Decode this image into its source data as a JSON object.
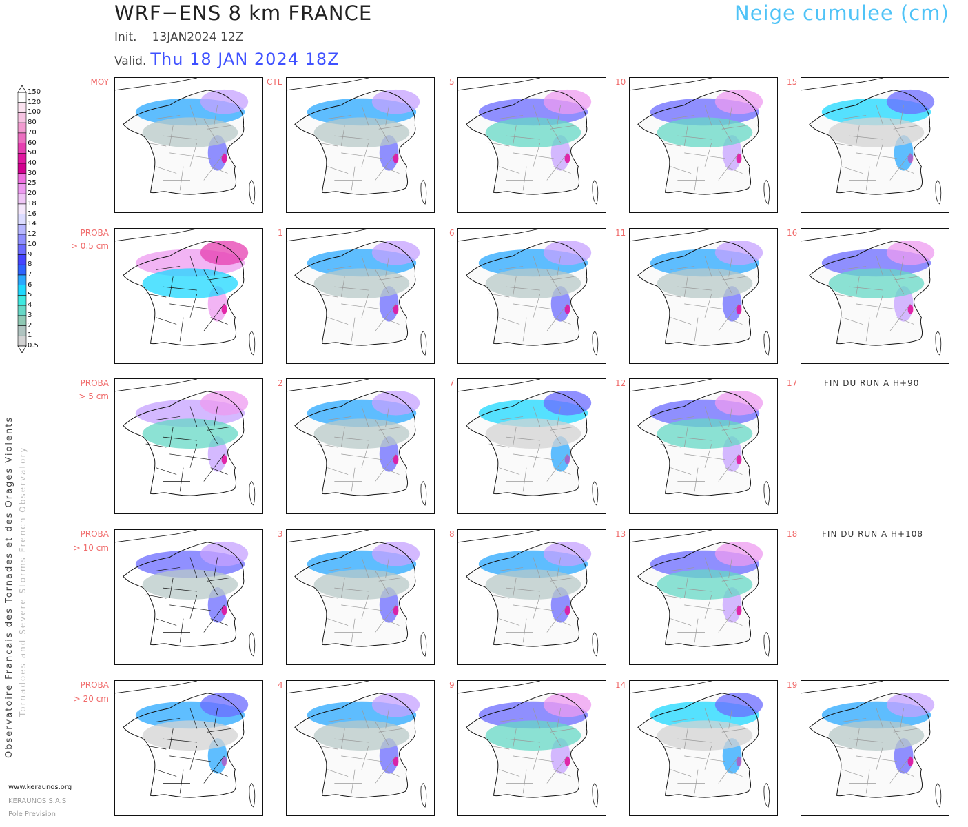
{
  "header": {
    "title": "WRF−ENS 8 km FRANCE",
    "subtitle": "Neige cumulee (cm)",
    "init_label": "Init.",
    "init_value": "13JAN2024 12Z",
    "valid_label": "Valid.",
    "valid_value": "Thu 18 JAN 2024 18Z"
  },
  "legend": {
    "labels": [
      "150",
      "120",
      "100",
      "80",
      "70",
      "60",
      "50",
      "40",
      "30",
      "25",
      "20",
      "18",
      "16",
      "14",
      "12",
      "10",
      "9",
      "8",
      "7",
      "6",
      "5",
      "4",
      "3",
      "2",
      "1",
      "0.5"
    ],
    "colors": [
      "#ffffff",
      "#fbe3f0",
      "#f7c3e2",
      "#f29bd0",
      "#ec6fc0",
      "#e63fb0",
      "#e0179f",
      "#d2008f",
      "#f070e0",
      "#ee9bf0",
      "#efc6f6",
      "#f4e7fb",
      "#dcdcff",
      "#b7b7ff",
      "#8f8fff",
      "#6b6bff",
      "#4545ff",
      "#2e63ff",
      "#2aa8ff",
      "#1ed8ff",
      "#3de9e0",
      "#66d8c6",
      "#8fc9b4",
      "#b0c4c0",
      "#d3d3d3",
      "#ececec"
    ]
  },
  "side_text": {
    "line1": "Observatoire Francais des Tornades et des Orages Violents",
    "line2": "Tornadoes and Severe Storms French Observatory"
  },
  "footer": {
    "website": "www.keraunos.org",
    "company": "KERAUNOS S.A.S",
    "dept": "Pole Prevision"
  },
  "row_labels": [
    {
      "line1": "MOY",
      "line2": ""
    },
    {
      "line1": "PROBA",
      "line2": "> 0.5 cm"
    },
    {
      "line1": "PROBA",
      "line2": "> 5 cm"
    },
    {
      "line1": "PROBA",
      "line2": "> 10 cm"
    },
    {
      "line1": "PROBA",
      "line2": "> 20 cm"
    }
  ],
  "member_labels": [
    "CTL",
    "5",
    "10",
    "15",
    "1",
    "6",
    "11",
    "16",
    "2",
    "7",
    "12",
    "17",
    "3",
    "8",
    "13",
    "18",
    "4",
    "9",
    "14",
    "19"
  ],
  "end_messages": {
    "m17": "FIN DU RUN A H+90",
    "m18": "FIN DU RUN A H+108"
  },
  "panels": [
    {
      "id": "moy",
      "label": "MOY",
      "style": "mean",
      "intensity": 2
    },
    {
      "id": "ctl",
      "label": "CTL",
      "style": "member",
      "intensity": 2
    },
    {
      "id": "m5",
      "label": "5",
      "style": "member",
      "intensity": 3
    },
    {
      "id": "m10",
      "label": "10",
      "style": "member",
      "intensity": 3
    },
    {
      "id": "m15",
      "label": "15",
      "style": "member",
      "intensity": 1
    },
    {
      "id": "p05",
      "label": "PROBA > 0.5 cm",
      "style": "proba",
      "intensity": 4
    },
    {
      "id": "m1",
      "label": "1",
      "style": "member",
      "intensity": 2
    },
    {
      "id": "m6",
      "label": "6",
      "style": "member",
      "intensity": 2
    },
    {
      "id": "m11",
      "label": "11",
      "style": "member",
      "intensity": 2
    },
    {
      "id": "m16",
      "label": "16",
      "style": "member",
      "intensity": 3
    },
    {
      "id": "p5",
      "label": "PROBA > 5 cm",
      "style": "proba",
      "intensity": 3
    },
    {
      "id": "m2",
      "label": "2",
      "style": "member",
      "intensity": 2
    },
    {
      "id": "m7",
      "label": "7",
      "style": "member",
      "intensity": 1
    },
    {
      "id": "m12",
      "label": "12",
      "style": "member",
      "intensity": 3
    },
    {
      "id": "p10",
      "label": "PROBA > 10 cm",
      "style": "proba",
      "intensity": 2
    },
    {
      "id": "m3",
      "label": "3",
      "style": "member",
      "intensity": 2
    },
    {
      "id": "m8",
      "label": "8",
      "style": "member",
      "intensity": 2
    },
    {
      "id": "m13",
      "label": "13",
      "style": "member",
      "intensity": 3
    },
    {
      "id": "p20",
      "label": "PROBA > 20 cm",
      "style": "proba",
      "intensity": 1
    },
    {
      "id": "m4",
      "label": "4",
      "style": "member",
      "intensity": 2
    },
    {
      "id": "m9",
      "label": "9",
      "style": "member",
      "intensity": 3
    },
    {
      "id": "m14",
      "label": "14",
      "style": "member",
      "intensity": 1
    },
    {
      "id": "m19",
      "label": "19",
      "style": "member",
      "intensity": 2
    }
  ],
  "colors": {
    "label_red": "#f06a6a",
    "title_cyan": "#4fc3f7",
    "valid_blue": "#3f51ff"
  }
}
